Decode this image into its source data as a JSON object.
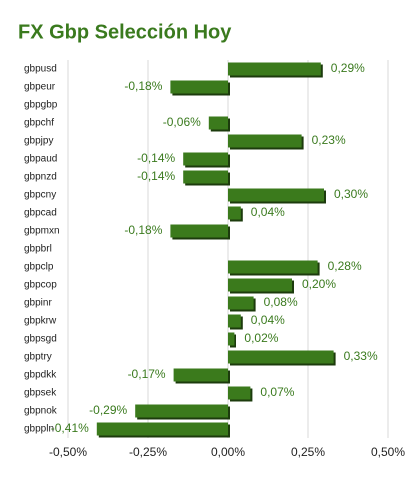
{
  "chart_data": {
    "type": "bar",
    "orientation": "horizontal",
    "title": "FX Gbp Selección Hoy",
    "categories": [
      "gbpusd",
      "gbpeur",
      "gbpgbp",
      "gbpchf",
      "gbpjpy",
      "gbpaud",
      "gbpnzd",
      "gbpcny",
      "gbpcad",
      "gbpmxn",
      "gbpbrl",
      "gbpclp",
      "gbpcop",
      "gbpinr",
      "gbpkrw",
      "gbpsgd",
      "gbptry",
      "gbpdkk",
      "gbpsek",
      "gbpnok",
      "gbppln"
    ],
    "values": [
      0.29,
      -0.18,
      null,
      -0.06,
      0.23,
      -0.14,
      -0.14,
      0.3,
      0.04,
      -0.18,
      null,
      0.28,
      0.2,
      0.08,
      0.04,
      0.02,
      0.33,
      -0.17,
      0.07,
      -0.29,
      -0.41
    ],
    "value_labels": [
      "0,29%",
      "-0,18%",
      null,
      "-0,06%",
      "0,23%",
      "-0,14%",
      "-0,14%",
      "0,30%",
      "0,04%",
      "-0,18%",
      null,
      "0,28%",
      "0,20%",
      "0,08%",
      "0,04%",
      "0,02%",
      "0,33%",
      "-0,17%",
      "0,07%",
      "-0,29%",
      "-0,41%"
    ],
    "color": "#3a7a1e",
    "xlim": [
      -0.5,
      0.5
    ],
    "xticks": [
      {
        "value": -0.5,
        "label": "-0,50%"
      },
      {
        "value": -0.25,
        "label": "-0,25%"
      },
      {
        "value": 0,
        "label": "0,00%"
      },
      {
        "value": 0.25,
        "label": "0,25%"
      },
      {
        "value": 0.5,
        "label": "0,50%"
      }
    ],
    "grid": true
  }
}
